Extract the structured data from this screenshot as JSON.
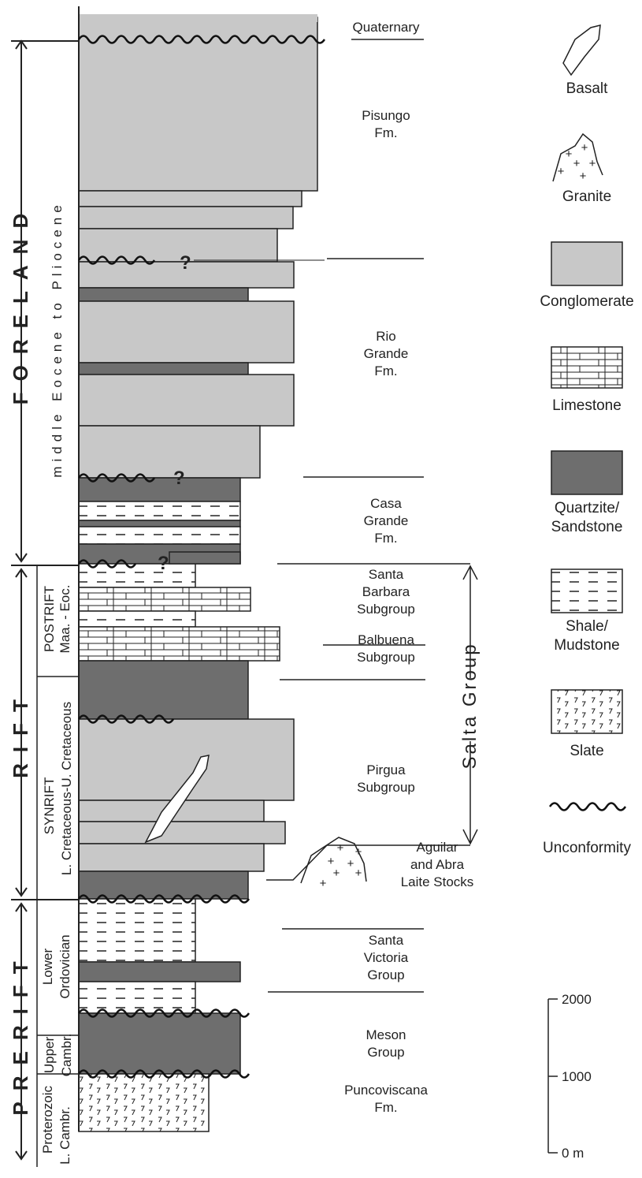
{
  "phases": [
    "FORELAND",
    "RIFT",
    "PRERIFT"
  ],
  "age_labels": [
    [
      "middle Eocene to Pliocene"
    ],
    [
      "POSTRIFT",
      "Maa. - Eoc."
    ],
    [
      "SYNRIFT",
      "L. Cretaceous-U. Cretaceous"
    ],
    [
      "Lower",
      "Ordovician"
    ],
    [
      "Upper",
      "Cambr."
    ],
    [
      "Proterozoic",
      "L. Cambr."
    ]
  ],
  "formations": [
    [
      "Quaternary"
    ],
    [
      "Pisungo",
      "Fm."
    ],
    [
      "Rio",
      "Grande",
      "Fm."
    ],
    [
      "Casa",
      "Grande",
      "Fm."
    ],
    [
      "Santa",
      "Barbara",
      "Subgroup"
    ],
    [
      "Balbuena",
      "Subgroup"
    ],
    [
      "Pirgua",
      "Subgroup"
    ],
    [
      "Aguilar",
      "and Abra",
      "Laite Stocks"
    ],
    [
      "Santa",
      "Victoria",
      "Group"
    ],
    [
      "Meson",
      "Group"
    ],
    [
      "Puncoviscana",
      "Fm."
    ]
  ],
  "question_marks": [
    "?",
    "?",
    "?"
  ],
  "group": "Salta Group",
  "legend": [
    [
      "Basalt"
    ],
    [
      "Granite"
    ],
    [
      "Conglomerate"
    ],
    [
      "Limestone"
    ],
    [
      "Quartzite/",
      "Sandstone"
    ],
    [
      "Shale/",
      "Mudstone"
    ],
    [
      "Slate"
    ],
    [
      "Unconformity"
    ]
  ],
  "scale": [
    "2000",
    "1000",
    "0 m"
  ]
}
